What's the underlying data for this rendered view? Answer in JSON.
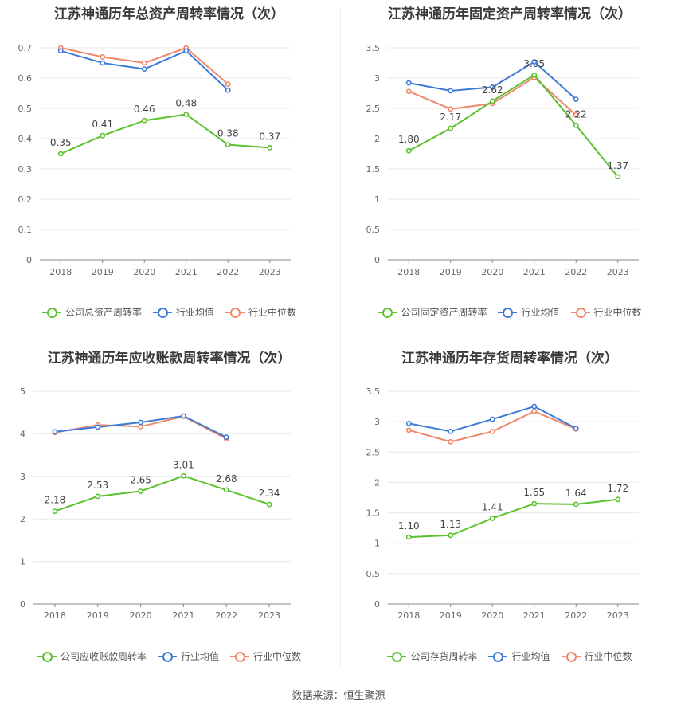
{
  "colors": {
    "company": "#5cc12f",
    "avg": "#3e7bd8",
    "median": "#f0876a",
    "grid": "#e8e8e8",
    "axis": "#888888",
    "text": "#666666"
  },
  "legend_labels_common": {
    "avg": "行业均值",
    "median": "行业中位数"
  },
  "source": "数据来源：恒生聚源",
  "chart_data": [
    {
      "type": "line",
      "title": "江苏神通历年总资产周转率情况（次）",
      "categories": [
        "2018",
        "2019",
        "2020",
        "2021",
        "2022",
        "2023"
      ],
      "ylim": [
        0,
        0.7
      ],
      "yticks": [
        "0",
        "0.1",
        "0.2",
        "0.3",
        "0.4",
        "0.5",
        "0.6",
        "0.7"
      ],
      "grid": true,
      "legend_position": "bottom",
      "series": [
        {
          "name": "公司总资产周转率",
          "key": "company",
          "values": [
            0.35,
            0.41,
            0.46,
            0.48,
            0.38,
            0.37
          ],
          "labels": [
            "0.35",
            "0.41",
            "0.46",
            "0.48",
            "0.38",
            "0.37"
          ]
        },
        {
          "name": "行业均值",
          "key": "avg",
          "values": [
            0.69,
            0.65,
            0.63,
            0.69,
            0.56,
            null
          ]
        },
        {
          "name": "行业中位数",
          "key": "median",
          "values": [
            0.7,
            0.67,
            0.65,
            0.7,
            0.58,
            null
          ]
        }
      ]
    },
    {
      "type": "line",
      "title": "江苏神通历年固定资产周转率情况（次）",
      "categories": [
        "2018",
        "2019",
        "2020",
        "2021",
        "2022",
        "2023"
      ],
      "ylim": [
        0,
        3.5
      ],
      "yticks": [
        "0",
        "0.5",
        "1",
        "1.5",
        "2",
        "2.5",
        "3",
        "3.5"
      ],
      "grid": true,
      "legend_position": "bottom",
      "series": [
        {
          "name": "公司固定资产周转率",
          "key": "company",
          "values": [
            1.8,
            2.17,
            2.62,
            3.05,
            2.22,
            1.37
          ],
          "labels": [
            "1.80",
            "2.17",
            "2.62",
            "3.05",
            "2.22",
            "1.37"
          ]
        },
        {
          "name": "行业均值",
          "key": "avg",
          "values": [
            2.92,
            2.79,
            2.85,
            3.27,
            2.65,
            null
          ]
        },
        {
          "name": "行业中位数",
          "key": "median",
          "values": [
            2.78,
            2.49,
            2.58,
            3.01,
            2.39,
            null
          ]
        }
      ]
    },
    {
      "type": "line",
      "title": "江苏神通历年应收账款周转率情况（次）",
      "categories": [
        "2018",
        "2019",
        "2020",
        "2021",
        "2022",
        "2023"
      ],
      "ylim": [
        0,
        5
      ],
      "yticks": [
        "0",
        "1",
        "2",
        "3",
        "4",
        "5"
      ],
      "grid": true,
      "legend_position": "bottom",
      "series": [
        {
          "name": "公司应收账款周转率",
          "key": "company",
          "values": [
            2.18,
            2.53,
            2.65,
            3.01,
            2.68,
            2.34
          ],
          "labels": [
            "2.18",
            "2.53",
            "2.65",
            "3.01",
            "2.68",
            "2.34"
          ]
        },
        {
          "name": "行业均值",
          "key": "avg",
          "values": [
            4.05,
            4.16,
            4.27,
            4.42,
            3.92,
            null
          ]
        },
        {
          "name": "行业中位数",
          "key": "median",
          "values": [
            4.03,
            4.21,
            4.17,
            4.41,
            3.88,
            null
          ]
        }
      ]
    },
    {
      "type": "line",
      "title": "江苏神通历年存货周转率情况（次）",
      "categories": [
        "2018",
        "2019",
        "2020",
        "2021",
        "2022",
        "2023"
      ],
      "ylim": [
        0,
        3.5
      ],
      "yticks": [
        "0",
        "0.5",
        "1",
        "1.5",
        "2",
        "2.5",
        "3",
        "3.5"
      ],
      "grid": true,
      "legend_position": "bottom",
      "series": [
        {
          "name": "公司存货周转率",
          "key": "company",
          "values": [
            1.1,
            1.13,
            1.41,
            1.65,
            1.64,
            1.72
          ],
          "labels": [
            "1.10",
            "1.13",
            "1.41",
            "1.65",
            "1.64",
            "1.72"
          ]
        },
        {
          "name": "行业均值",
          "key": "avg",
          "values": [
            2.97,
            2.84,
            3.04,
            3.25,
            2.89,
            null
          ]
        },
        {
          "name": "行业中位数",
          "key": "median",
          "values": [
            2.86,
            2.67,
            2.84,
            3.17,
            2.88,
            null
          ]
        }
      ]
    }
  ]
}
